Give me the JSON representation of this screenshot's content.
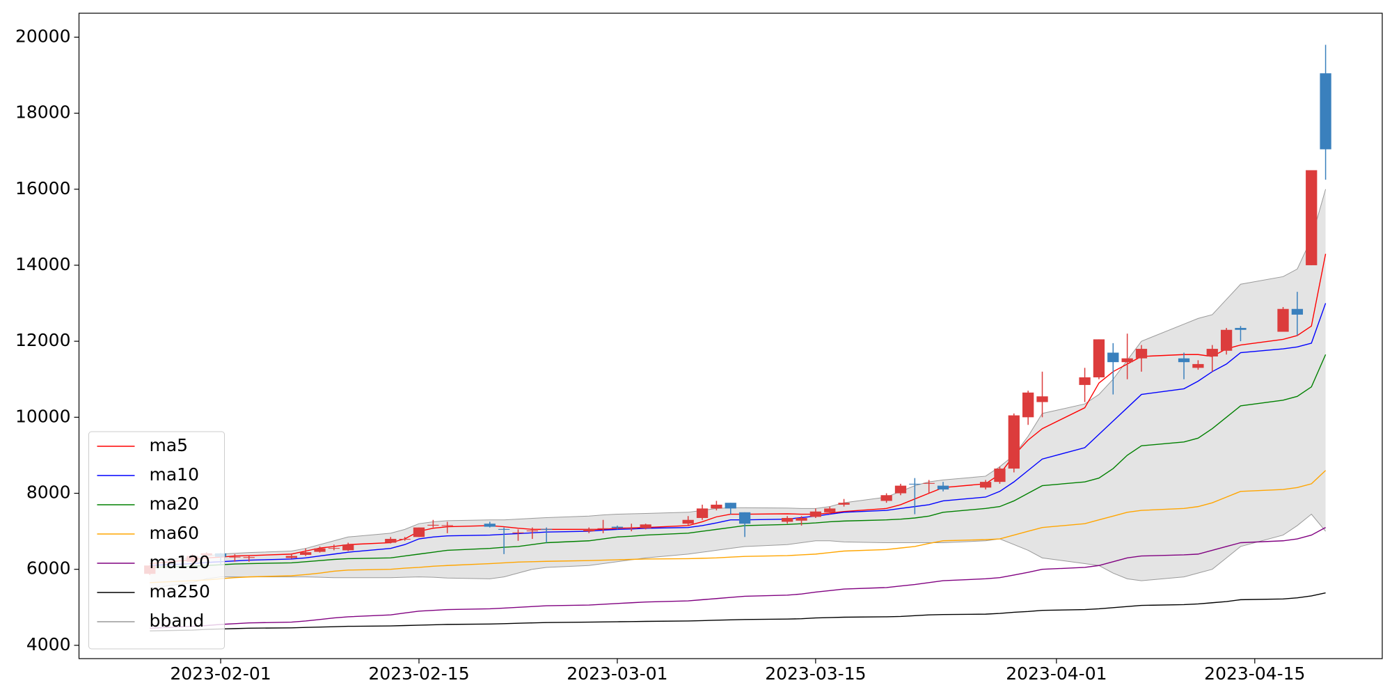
{
  "chart_data": {
    "type": "candlestick",
    "x": [
      "2023-01-27",
      "2023-01-30",
      "2023-01-31",
      "2023-02-01",
      "2023-02-02",
      "2023-02-03",
      "2023-02-06",
      "2023-02-07",
      "2023-02-08",
      "2023-02-09",
      "2023-02-10",
      "2023-02-13",
      "2023-02-14",
      "2023-02-15",
      "2023-02-16",
      "2023-02-17",
      "2023-02-20",
      "2023-02-21",
      "2023-02-22",
      "2023-02-23",
      "2023-02-24",
      "2023-02-27",
      "2023-02-28",
      "2023-03-01",
      "2023-03-02",
      "2023-03-03",
      "2023-03-06",
      "2023-03-07",
      "2023-03-08",
      "2023-03-09",
      "2023-03-10",
      "2023-03-13",
      "2023-03-14",
      "2023-03-15",
      "2023-03-16",
      "2023-03-17",
      "2023-03-20",
      "2023-03-21",
      "2023-03-22",
      "2023-03-23",
      "2023-03-24",
      "2023-03-27",
      "2023-03-28",
      "2023-03-29",
      "2023-03-30",
      "2023-03-31",
      "2023-04-03",
      "2023-04-04",
      "2023-04-05",
      "2023-04-06",
      "2023-04-07",
      "2023-04-10",
      "2023-04-11",
      "2023-04-12",
      "2023-04-13",
      "2023-04-14",
      "2023-04-17",
      "2023-04-18",
      "2023-04-19",
      "2023-04-20"
    ],
    "open": [
      5880,
      6200,
      6370,
      6420,
      6330,
      6300,
      6300,
      6380,
      6460,
      6550,
      6500,
      6700,
      6800,
      6850,
      7150,
      7150,
      7200,
      7060,
      6950,
      7000,
      7060,
      7000,
      7060,
      7120,
      7080,
      7080,
      7200,
      7350,
      7600,
      7750,
      7500,
      7250,
      7280,
      7380,
      7500,
      7700,
      7800,
      8000,
      8250,
      8250,
      8200,
      8150,
      8300,
      8650,
      10000,
      10400,
      10850,
      11050,
      11700,
      11450,
      11550,
      11550,
      11300,
      11600,
      11750,
      12350,
      12250,
      12850,
      14000,
      19050
    ],
    "high": [
      6100,
      6400,
      6450,
      6430,
      6400,
      6350,
      6420,
      6550,
      6600,
      6650,
      6700,
      6850,
      6850,
      7100,
      7300,
      7250,
      7250,
      7100,
      7050,
      7100,
      7100,
      7100,
      7300,
      7150,
      7200,
      7200,
      7400,
      7700,
      7800,
      7750,
      7500,
      7400,
      7400,
      7600,
      7650,
      7850,
      8000,
      8250,
      8400,
      8350,
      8300,
      8350,
      8700,
      10100,
      10700,
      11200,
      11300,
      12050,
      11950,
      12200,
      11900,
      11700,
      11500,
      11900,
      12350,
      12400,
      12900,
      13300,
      16500,
      19800
    ],
    "low": [
      5850,
      6150,
      6340,
      6100,
      6200,
      6200,
      6280,
      6350,
      6440,
      6500,
      6480,
      6680,
      6750,
      6850,
      7100,
      6950,
      7100,
      6400,
      6750,
      6800,
      6700,
      6950,
      6950,
      7050,
      7000,
      7050,
      7150,
      7300,
      7550,
      7450,
      6850,
      7200,
      7150,
      7350,
      7450,
      7650,
      7750,
      7950,
      7450,
      8000,
      8050,
      8100,
      8250,
      8550,
      9800,
      10000,
      10400,
      11000,
      10600,
      11000,
      11200,
      11000,
      11250,
      11200,
      11650,
      12000,
      12250,
      12150,
      14000,
      16250
    ],
    "close": [
      6100,
      6350,
      6420,
      6330,
      6330,
      6320,
      6350,
      6450,
      6550,
      6560,
      6650,
      6800,
      6800,
      7100,
      7170,
      7160,
      7120,
      7040,
      6970,
      7020,
      7040,
      7060,
      7080,
      7090,
      7090,
      7180,
      7300,
      7600,
      7700,
      7600,
      7200,
      7350,
      7350,
      7520,
      7600,
      7750,
      7950,
      8200,
      8230,
      8270,
      8100,
      8300,
      8650,
      10050,
      10650,
      10550,
      11050,
      12050,
      11450,
      11550,
      11800,
      11450,
      11400,
      11800,
      12300,
      12300,
      12850,
      12700,
      16500,
      17050
    ],
    "up_color": "#dc3c3c",
    "down_color": "#3a80bd",
    "series": [
      {
        "name": "ma5",
        "color": "#ff0000",
        "values": [
          6150,
          6250,
          6300,
          6320,
          6350,
          6360,
          6400,
          6480,
          6560,
          6600,
          6650,
          6700,
          6800,
          7000,
          7080,
          7120,
          7150,
          7120,
          7080,
          7050,
          7050,
          7050,
          7050,
          7080,
          7090,
          7100,
          7150,
          7250,
          7380,
          7450,
          7450,
          7460,
          7450,
          7450,
          7480,
          7520,
          7600,
          7700,
          7850,
          8000,
          8150,
          8250,
          8500,
          9000,
          9400,
          9700,
          10250,
          10900,
          11200,
          11400,
          11600,
          11650,
          11650,
          11600,
          11800,
          11900,
          12050,
          12150,
          12400,
          14300
        ]
      },
      {
        "name": "ma10",
        "color": "#0000ff",
        "values": [
          6100,
          6150,
          6180,
          6200,
          6220,
          6240,
          6270,
          6300,
          6350,
          6400,
          6450,
          6550,
          6650,
          6800,
          6850,
          6880,
          6900,
          6920,
          6940,
          6960,
          6980,
          7000,
          7030,
          7050,
          7060,
          7080,
          7100,
          7150,
          7220,
          7300,
          7300,
          7320,
          7360,
          7400,
          7450,
          7500,
          7550,
          7600,
          7650,
          7700,
          7800,
          7900,
          8050,
          8300,
          8600,
          8900,
          9200,
          9550,
          9900,
          10250,
          10600,
          10750,
          10950,
          11200,
          11400,
          11700,
          11800,
          11850,
          11950,
          13000
        ]
      },
      {
        "name": "ma20",
        "color": "#008000",
        "values": [
          6050,
          6080,
          6100,
          6120,
          6140,
          6150,
          6170,
          6200,
          6230,
          6260,
          6280,
          6300,
          6350,
          6400,
          6450,
          6500,
          6550,
          6580,
          6600,
          6650,
          6700,
          6750,
          6800,
          6850,
          6870,
          6900,
          6950,
          7000,
          7050,
          7100,
          7150,
          7180,
          7200,
          7220,
          7250,
          7270,
          7300,
          7320,
          7350,
          7400,
          7500,
          7600,
          7650,
          7800,
          8000,
          8200,
          8300,
          8400,
          8650,
          9000,
          9250,
          9350,
          9450,
          9700,
          10000,
          10300,
          10450,
          10550,
          10800,
          11650
        ]
      },
      {
        "name": "ma60",
        "color": "#ffa500",
        "values": [
          5650,
          5700,
          5720,
          5750,
          5780,
          5800,
          5830,
          5860,
          5900,
          5950,
          5980,
          6000,
          6030,
          6050,
          6080,
          6100,
          6150,
          6170,
          6190,
          6200,
          6210,
          6230,
          6240,
          6250,
          6260,
          6270,
          6280,
          6290,
          6300,
          6320,
          6340,
          6360,
          6380,
          6400,
          6440,
          6480,
          6520,
          6560,
          6600,
          6680,
          6750,
          6780,
          6800,
          6900,
          7000,
          7100,
          7200,
          7300,
          7400,
          7500,
          7550,
          7600,
          7650,
          7750,
          7900,
          8050,
          8100,
          8150,
          8250,
          8600
        ]
      },
      {
        "name": "ma120",
        "color": "#800080",
        "values": [
          4450,
          4500,
          4520,
          4550,
          4570,
          4590,
          4610,
          4640,
          4680,
          4720,
          4750,
          4800,
          4850,
          4900,
          4920,
          4940,
          4960,
          4980,
          5000,
          5020,
          5040,
          5060,
          5080,
          5100,
          5120,
          5140,
          5170,
          5200,
          5230,
          5260,
          5290,
          5320,
          5350,
          5400,
          5440,
          5480,
          5520,
          5560,
          5600,
          5650,
          5700,
          5750,
          5780,
          5850,
          5920,
          6000,
          6050,
          6100,
          6200,
          6300,
          6350,
          6380,
          6400,
          6500,
          6600,
          6700,
          6750,
          6800,
          6900,
          7100
        ]
      },
      {
        "name": "ma250",
        "color": "#000000",
        "values": [
          4380,
          4400,
          4420,
          4430,
          4440,
          4450,
          4460,
          4470,
          4480,
          4490,
          4500,
          4510,
          4520,
          4530,
          4540,
          4550,
          4560,
          4570,
          4580,
          4590,
          4600,
          4610,
          4615,
          4620,
          4625,
          4630,
          4640,
          4650,
          4660,
          4670,
          4680,
          4690,
          4700,
          4720,
          4730,
          4740,
          4750,
          4760,
          4780,
          4800,
          4810,
          4820,
          4840,
          4870,
          4890,
          4920,
          4940,
          4960,
          4990,
          5020,
          5050,
          5070,
          5090,
          5120,
          5150,
          5200,
          5220,
          5250,
          5300,
          5380
        ]
      }
    ],
    "bband": {
      "name": "bband",
      "color": "#999999",
      "fill": "#e4e4e4",
      "upper": [
        6250,
        6300,
        6350,
        6400,
        6420,
        6440,
        6480,
        6550,
        6650,
        6750,
        6850,
        6950,
        7050,
        7200,
        7250,
        7280,
        7300,
        7300,
        7320,
        7340,
        7360,
        7400,
        7430,
        7450,
        7460,
        7470,
        7500,
        7550,
        7600,
        7620,
        7620,
        7610,
        7600,
        7600,
        7650,
        7750,
        7900,
        8050,
        8200,
        8300,
        8350,
        8450,
        8700,
        9000,
        9500,
        10100,
        10350,
        10600,
        11000,
        11500,
        12000,
        12450,
        12600,
        12700,
        13100,
        13500,
        13700,
        13900,
        14700,
        16000
      ],
      "lower": [
        5500,
        5650,
        5750,
        5800,
        5800,
        5800,
        5800,
        5800,
        5790,
        5780,
        5780,
        5780,
        5790,
        5800,
        5790,
        5770,
        5750,
        5800,
        5900,
        6000,
        6050,
        6100,
        6150,
        6200,
        6250,
        6300,
        6400,
        6450,
        6500,
        6550,
        6600,
        6650,
        6700,
        6750,
        6750,
        6720,
        6700,
        6700,
        6700,
        6700,
        6700,
        6750,
        6800,
        6650,
        6500,
        6300,
        6150,
        6100,
        5900,
        5750,
        5700,
        5800,
        5900,
        6000,
        6300,
        6600,
        6900,
        7150,
        7450,
        7000
      ]
    },
    "xlim": [
      "2023-01-22",
      "2023-04-24"
    ],
    "xticks": [
      "2023-02-01",
      "2023-02-15",
      "2023-03-01",
      "2023-03-15",
      "2023-04-01",
      "2023-04-15"
    ],
    "ylim": [
      3650,
      20630
    ],
    "yticks": [
      4000,
      6000,
      8000,
      10000,
      12000,
      14000,
      16000,
      18000,
      20000
    ],
    "legend": "lower left"
  }
}
